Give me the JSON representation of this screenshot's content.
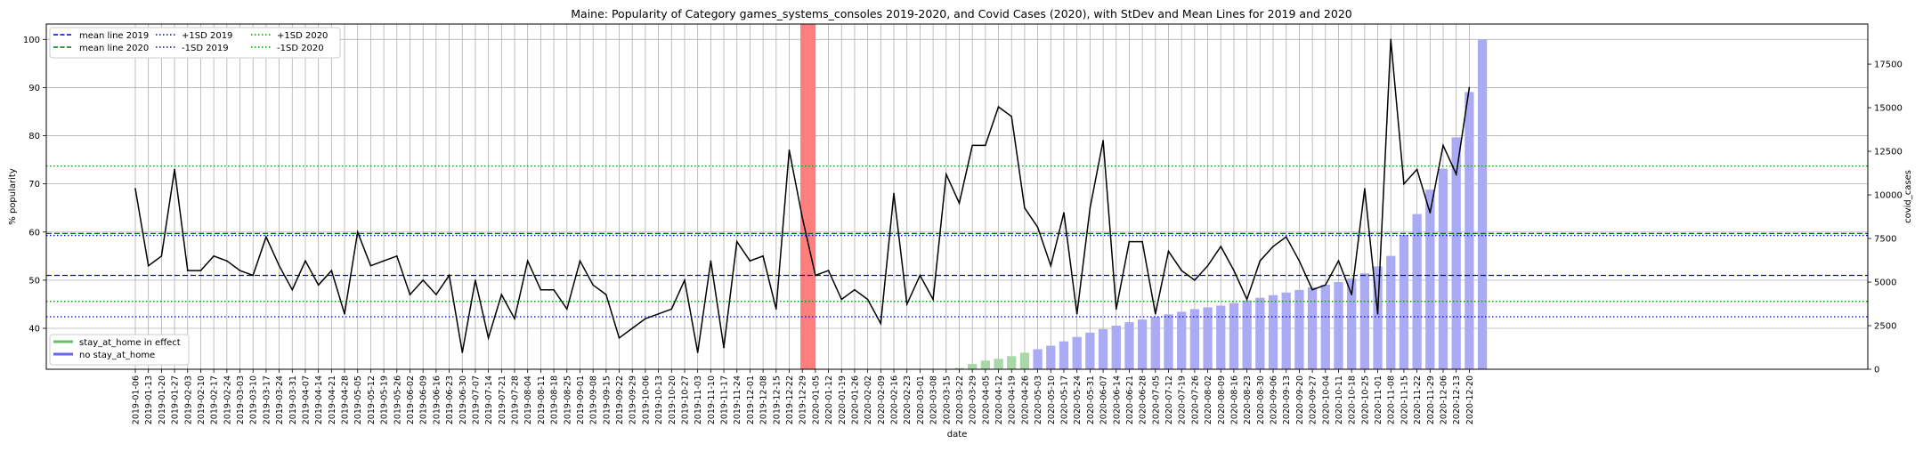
{
  "chart_data": {
    "type": "line",
    "title": "Maine: Popularity of Category games_systems_consoles 2019-2020, and Covid Cases (2020), with StDev and Mean Lines for 2019 and 2020",
    "xlabel": "date",
    "ylabel": "% popularity",
    "y2label": "covid_cases",
    "ylim": [
      31.5,
      103.2
    ],
    "y2lim": [
      0,
      19800
    ],
    "yticks": [
      40,
      50,
      60,
      70,
      80,
      90,
      100
    ],
    "y2ticks": [
      0,
      2500,
      5000,
      7500,
      10000,
      12500,
      15000,
      17500
    ],
    "grid": true,
    "dates": [
      "2019-01-06",
      "2019-01-13",
      "2019-01-20",
      "2019-01-27",
      "2019-02-03",
      "2019-02-10",
      "2019-02-17",
      "2019-02-24",
      "2019-03-03",
      "2019-03-10",
      "2019-03-17",
      "2019-03-24",
      "2019-03-31",
      "2019-04-07",
      "2019-04-14",
      "2019-04-21",
      "2019-04-28",
      "2019-05-05",
      "2019-05-12",
      "2019-05-19",
      "2019-05-26",
      "2019-06-02",
      "2019-06-09",
      "2019-06-16",
      "2019-06-23",
      "2019-06-30",
      "2019-07-07",
      "2019-07-14",
      "2019-07-21",
      "2019-07-28",
      "2019-08-04",
      "2019-08-11",
      "2019-08-18",
      "2019-08-25",
      "2019-09-01",
      "2019-09-08",
      "2019-09-15",
      "2019-09-22",
      "2019-09-29",
      "2019-10-06",
      "2019-10-13",
      "2019-10-20",
      "2019-10-27",
      "2019-11-03",
      "2019-11-10",
      "2019-11-17",
      "2019-11-24",
      "2019-12-01",
      "2019-12-08",
      "2019-12-15",
      "2019-12-22",
      "2019-12-29",
      "2020-01-05",
      "2020-01-12",
      "2020-01-19",
      "2020-01-26",
      "2020-02-02",
      "2020-02-09",
      "2020-02-16",
      "2020-02-23",
      "2020-03-01",
      "2020-03-08",
      "2020-03-15",
      "2020-03-22",
      "2020-03-29",
      "2020-04-05",
      "2020-04-12",
      "2020-04-19",
      "2020-04-26",
      "2020-05-03",
      "2020-05-10",
      "2020-05-17",
      "2020-05-24",
      "2020-05-31",
      "2020-06-07",
      "2020-06-14",
      "2020-06-21",
      "2020-06-28",
      "2020-07-05",
      "2020-07-12",
      "2020-07-19",
      "2020-07-26",
      "2020-08-02",
      "2020-08-09",
      "2020-08-16",
      "2020-08-23",
      "2020-08-30",
      "2020-09-06",
      "2020-09-13",
      "2020-09-20",
      "2020-09-27",
      "2020-10-04",
      "2020-10-11",
      "2020-10-18",
      "2020-10-25",
      "2020-11-01",
      "2020-11-08",
      "2020-11-15",
      "2020-11-22",
      "2020-11-29",
      "2020-12-06",
      "2020-12-13",
      "2020-12-20"
    ],
    "popularity": [
      69,
      53,
      55,
      73,
      52,
      52,
      55,
      54,
      52,
      51,
      59,
      53,
      48,
      54,
      49,
      52,
      43,
      60,
      53,
      54,
      55,
      47,
      50,
      47,
      51,
      35,
      50,
      38,
      47,
      42,
      54,
      48,
      48,
      44,
      54,
      49,
      47,
      38,
      40,
      42,
      43,
      44,
      50,
      35,
      54,
      36,
      58,
      54,
      55,
      44,
      77,
      63,
      51,
      52,
      46,
      48,
      46,
      41,
      68,
      45,
      51,
      46,
      72,
      66,
      78,
      78,
      86,
      84,
      65,
      61,
      53,
      64,
      43,
      65,
      79,
      44,
      58,
      58,
      43,
      56,
      52,
      50,
      53,
      57,
      52,
      46,
      54,
      57,
      59,
      54,
      48,
      49,
      54,
      47,
      69,
      43,
      100,
      70,
      73,
      64,
      78,
      72,
      90
    ],
    "covid_cases": [
      0,
      0,
      0,
      0,
      0,
      0,
      0,
      0,
      0,
      0,
      0,
      0,
      0,
      0,
      0,
      0,
      0,
      0,
      0,
      0,
      0,
      0,
      0,
      0,
      0,
      0,
      0,
      0,
      0,
      0,
      0,
      0,
      0,
      0,
      0,
      0,
      0,
      0,
      0,
      0,
      0,
      0,
      0,
      0,
      0,
      0,
      0,
      0,
      0,
      0,
      0,
      0,
      0,
      0,
      0,
      0,
      0,
      0,
      0,
      0,
      0,
      0,
      0,
      70,
      300,
      500,
      600,
      750,
      950,
      1150,
      1350,
      1600,
      1850,
      2100,
      2300,
      2500,
      2700,
      2850,
      3000,
      3150,
      3300,
      3450,
      3550,
      3650,
      3800,
      3950,
      4100,
      4250,
      4400,
      4550,
      4700,
      4850,
      5000,
      5200,
      5500,
      5900,
      6500,
      7700,
      8900,
      10300,
      11500,
      13300,
      15900,
      18900
    ],
    "stay_at_home": [
      false,
      false,
      false,
      false,
      false,
      false,
      false,
      false,
      false,
      false,
      false,
      false,
      false,
      false,
      false,
      false,
      false,
      false,
      false,
      false,
      false,
      false,
      false,
      false,
      false,
      false,
      false,
      false,
      false,
      false,
      false,
      false,
      false,
      false,
      false,
      false,
      false,
      false,
      false,
      false,
      false,
      false,
      false,
      false,
      false,
      false,
      false,
      false,
      false,
      false,
      false,
      false,
      false,
      false,
      false,
      false,
      false,
      false,
      false,
      false,
      false,
      false,
      false,
      true,
      true,
      true,
      true,
      true,
      true,
      false,
      false,
      false,
      false,
      false,
      false,
      false,
      false,
      false,
      false,
      false,
      false,
      false,
      false,
      false,
      false,
      false,
      false,
      false,
      false,
      false,
      false,
      false,
      false,
      false,
      false,
      false,
      false,
      false,
      false,
      false,
      false,
      false,
      false
    ],
    "highlight_date": "2020-01-01",
    "mean_2019": 51,
    "mean_2020": 59.7,
    "plus_sd_2019": 59.3,
    "minus_sd_2019": 42.4,
    "plus_sd_2020": 73.7,
    "minus_sd_2020": 45.6,
    "legend_top": [
      {
        "label": "mean line 2019",
        "color": "#0000cc",
        "style": "dashed"
      },
      {
        "label": "mean line 2020",
        "color": "#007700",
        "style": "dashed"
      },
      {
        "label": "+1SD 2019",
        "color": "#0000cc",
        "style": "dotted"
      },
      {
        "label": "-1SD 2019",
        "color": "#0000cc",
        "style": "dotted"
      },
      {
        "label": "+1SD 2020",
        "color": "#009900",
        "style": "dotted"
      },
      {
        "label": "-1SD 2020",
        "color": "#009900",
        "style": "dotted"
      }
    ],
    "legend_bottom": [
      {
        "label": "stay_at_home in effect",
        "color": "#6abf69"
      },
      {
        "label": "no stay_at_home",
        "color": "#6666ee"
      }
    ],
    "colors": {
      "line": "#000000",
      "bar_stay": "#a8d8a8",
      "bar_no_stay": "#aaaaf5",
      "highlight": "#ff7f7f",
      "mean2019": "#0000cc",
      "mean2020": "#007700",
      "sd2019": "#0000cc",
      "sd2020": "#009900",
      "grid": "#b0b0b0"
    }
  }
}
